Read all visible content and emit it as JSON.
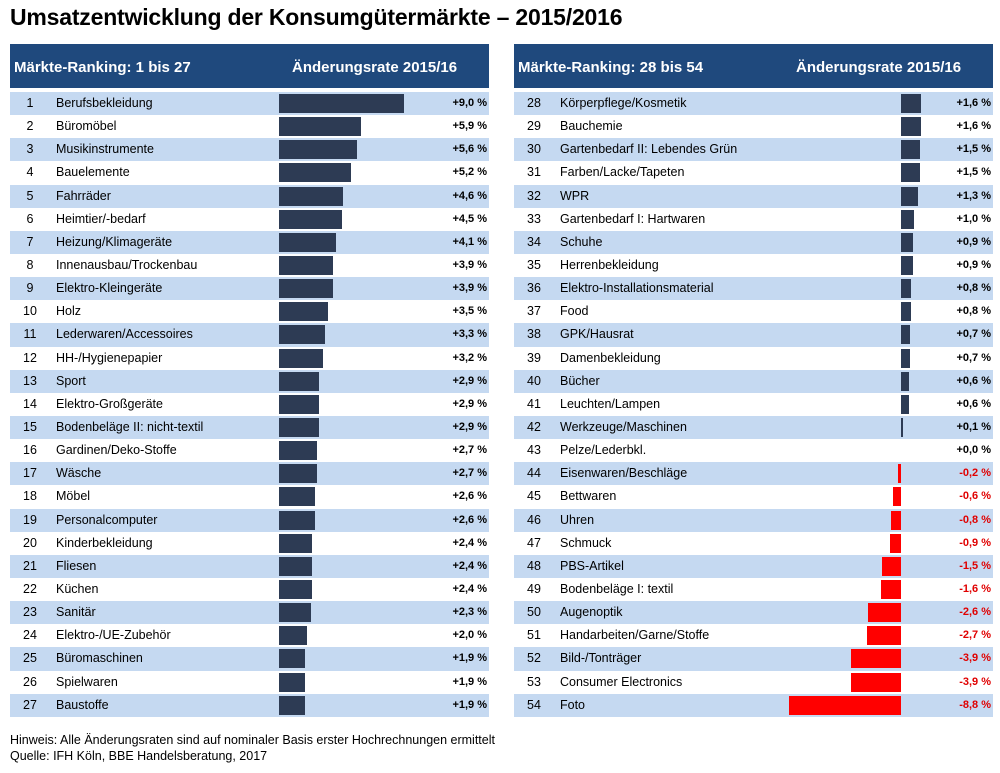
{
  "title": "Umsatzentwicklung der Konsumgütermärkte – 2015/2016",
  "colors": {
    "header_bg": "#1f497d",
    "row_alt": "#c5d9f1",
    "bar_positive": "#2d3b54",
    "bar_negative": "#ff0000",
    "value_negative": "#e00000"
  },
  "panels": [
    {
      "rank_header": "Märkte-Ranking:   1 bis 27",
      "change_header": "Änderungsrate 2015/16"
    },
    {
      "rank_header": "Märkte-Ranking:   28 bis 54",
      "change_header": "Änderungsrate 2015/16"
    }
  ],
  "chart_data": {
    "type": "bar",
    "orientation": "horizontal",
    "title": "Umsatzentwicklung der Konsumgütermärkte – 2015/2016",
    "xlabel": "Änderungsrate 2015/16",
    "unit": "%",
    "scale_max_abs": 9.0,
    "markets": [
      {
        "rank": "1",
        "name": "Berufsbekleidung",
        "value": 9.0,
        "label": "+9,0 %"
      },
      {
        "rank": "2",
        "name": "Büromöbel",
        "value": 5.9,
        "label": "+5,9 %"
      },
      {
        "rank": "3",
        "name": "Musikinstrumente",
        "value": 5.6,
        "label": "+5,6 %"
      },
      {
        "rank": "4",
        "name": "Bauelemente",
        "value": 5.2,
        "label": "+5,2 %"
      },
      {
        "rank": "5",
        "name": "Fahrräder",
        "value": 4.6,
        "label": "+4,6 %"
      },
      {
        "rank": "6",
        "name": "Heimtier/-bedarf",
        "value": 4.5,
        "label": "+4,5 %"
      },
      {
        "rank": "7",
        "name": "Heizung/Klimageräte",
        "value": 4.1,
        "label": "+4,1 %"
      },
      {
        "rank": "8",
        "name": "Innenausbau/Trockenbau",
        "value": 3.9,
        "label": "+3,9 %"
      },
      {
        "rank": "9",
        "name": "Elektro-Kleingeräte",
        "value": 3.9,
        "label": "+3,9 %"
      },
      {
        "rank": "10",
        "name": "Holz",
        "value": 3.5,
        "label": "+3,5 %"
      },
      {
        "rank": "11",
        "name": "Lederwaren/Accessoires",
        "value": 3.3,
        "label": "+3,3 %"
      },
      {
        "rank": "12",
        "name": "HH-/Hygienepapier",
        "value": 3.2,
        "label": "+3,2 %"
      },
      {
        "rank": "13",
        "name": "Sport",
        "value": 2.9,
        "label": "+2,9 %"
      },
      {
        "rank": "14",
        "name": "Elektro-Großgeräte",
        "value": 2.9,
        "label": "+2,9 %"
      },
      {
        "rank": "15",
        "name": "Bodenbeläge II: nicht-textil",
        "value": 2.9,
        "label": "+2,9 %"
      },
      {
        "rank": "16",
        "name": "Gardinen/Deko-Stoffe",
        "value": 2.7,
        "label": "+2,7 %"
      },
      {
        "rank": "17",
        "name": "Wäsche",
        "value": 2.7,
        "label": "+2,7 %"
      },
      {
        "rank": "18",
        "name": "Möbel",
        "value": 2.6,
        "label": "+2,6 %"
      },
      {
        "rank": "19",
        "name": "Personalcomputer",
        "value": 2.6,
        "label": "+2,6 %"
      },
      {
        "rank": "20",
        "name": "Kinderbekleidung",
        "value": 2.4,
        "label": "+2,4 %"
      },
      {
        "rank": "21",
        "name": "Fliesen",
        "value": 2.4,
        "label": "+2,4 %"
      },
      {
        "rank": "22",
        "name": "Küchen",
        "value": 2.4,
        "label": "+2,4 %"
      },
      {
        "rank": "23",
        "name": "Sanitär",
        "value": 2.3,
        "label": "+2,3 %"
      },
      {
        "rank": "24",
        "name": "Elektro-/UE-Zubehör",
        "value": 2.0,
        "label": "+2,0 %"
      },
      {
        "rank": "25",
        "name": "Büromaschinen",
        "value": 1.9,
        "label": "+1,9 %"
      },
      {
        "rank": "26",
        "name": "Spielwaren",
        "value": 1.9,
        "label": "+1,9 %"
      },
      {
        "rank": "27",
        "name": "Baustoffe",
        "value": 1.9,
        "label": "+1,9 %"
      },
      {
        "rank": "28",
        "name": "Körperpflege/Kosmetik",
        "value": 1.6,
        "label": "+1,6 %"
      },
      {
        "rank": "29",
        "name": "Bauchemie",
        "value": 1.6,
        "label": "+1,6 %"
      },
      {
        "rank": "30",
        "name": "Gartenbedarf II: Lebendes Grün",
        "value": 1.5,
        "label": "+1,5 %"
      },
      {
        "rank": "31",
        "name": "Farben/Lacke/Tapeten",
        "value": 1.5,
        "label": "+1,5 %"
      },
      {
        "rank": "32",
        "name": "WPR",
        "value": 1.3,
        "label": "+1,3 %"
      },
      {
        "rank": "33",
        "name": "Gartenbedarf I: Hartwaren",
        "value": 1.0,
        "label": "+1,0 %"
      },
      {
        "rank": "34",
        "name": "Schuhe",
        "value": 0.9,
        "label": "+0,9 %"
      },
      {
        "rank": "35",
        "name": "Herrenbekleidung",
        "value": 0.9,
        "label": "+0,9 %"
      },
      {
        "rank": "36",
        "name": "Elektro-Installationsmaterial",
        "value": 0.8,
        "label": "+0,8 %"
      },
      {
        "rank": "37",
        "name": "Food",
        "value": 0.8,
        "label": "+0,8 %"
      },
      {
        "rank": "38",
        "name": "GPK/Hausrat",
        "value": 0.7,
        "label": "+0,7 %"
      },
      {
        "rank": "39",
        "name": "Damenbekleidung",
        "value": 0.7,
        "label": "+0,7 %"
      },
      {
        "rank": "40",
        "name": "Bücher",
        "value": 0.6,
        "label": "+0,6 %"
      },
      {
        "rank": "41",
        "name": "Leuchten/Lampen",
        "value": 0.6,
        "label": "+0,6 %"
      },
      {
        "rank": "42",
        "name": "Werkzeuge/Maschinen",
        "value": 0.1,
        "label": "+0,1 %"
      },
      {
        "rank": "43",
        "name": "Pelze/Lederbkl.",
        "value": 0.0,
        "label": "+0,0 %"
      },
      {
        "rank": "44",
        "name": "Eisenwaren/Beschläge",
        "value": -0.2,
        "label": "-0,2 %"
      },
      {
        "rank": "45",
        "name": "Bettwaren",
        "value": -0.6,
        "label": "-0,6 %"
      },
      {
        "rank": "46",
        "name": "Uhren",
        "value": -0.8,
        "label": "-0,8 %"
      },
      {
        "rank": "47",
        "name": "Schmuck",
        "value": -0.9,
        "label": "-0,9 %"
      },
      {
        "rank": "48",
        "name": "PBS-Artikel",
        "value": -1.5,
        "label": "-1,5 %"
      },
      {
        "rank": "49",
        "name": "Bodenbeläge I: textil",
        "value": -1.6,
        "label": "-1,6 %"
      },
      {
        "rank": "50",
        "name": "Augenoptik",
        "value": -2.6,
        "label": "-2,6 %"
      },
      {
        "rank": "51",
        "name": "Handarbeiten/Garne/Stoffe",
        "value": -2.7,
        "label": "-2,7 %"
      },
      {
        "rank": "52",
        "name": "Bild-/Tonträger",
        "value": -3.9,
        "label": "-3,9 %"
      },
      {
        "rank": "53",
        "name": "Consumer Electronics",
        "value": -3.9,
        "label": "-3,9 %"
      },
      {
        "rank": "54",
        "name": "Foto",
        "value": -8.8,
        "label": "-8,8 %"
      }
    ]
  },
  "footer": {
    "note": "Hinweis: Alle Änderungsraten sind auf nominaler Basis erster Hochrechnungen ermittelt",
    "source": "Quelle: IFH Köln, BBE Handelsberatung, 2017"
  }
}
